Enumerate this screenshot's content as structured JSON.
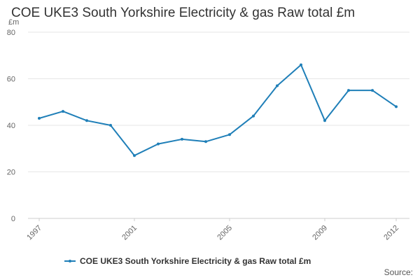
{
  "colors": {
    "series": "#1f7fb8",
    "grid": "#e6e6e6",
    "axis_text": "#666666"
  },
  "chart_data": {
    "type": "line",
    "title": "COE UKE3 South Yorkshire Electricity & gas Raw total £m",
    "ylabel": "£m",
    "xlabel": "",
    "x": [
      1997,
      1998,
      1999,
      2000,
      2001,
      2002,
      2003,
      2004,
      2005,
      2006,
      2007,
      2008,
      2009,
      2010,
      2011,
      2012
    ],
    "series": [
      {
        "name": "COE UKE3 South Yorkshire Electricity & gas Raw total £m",
        "values": [
          43,
          46,
          42,
          40,
          27,
          32,
          34,
          33,
          36,
          44,
          57,
          66,
          42,
          55,
          55,
          48
        ]
      }
    ],
    "xlim": [
      1997,
      2012
    ],
    "ylim": [
      0,
      80
    ],
    "x_ticks": [
      "1997",
      "2001",
      "2005",
      "2009",
      "2012"
    ],
    "y_ticks": [
      "0",
      "20",
      "40",
      "60",
      "80"
    ],
    "grid": true,
    "legend_position": "bottom"
  },
  "source_label": "Source:"
}
